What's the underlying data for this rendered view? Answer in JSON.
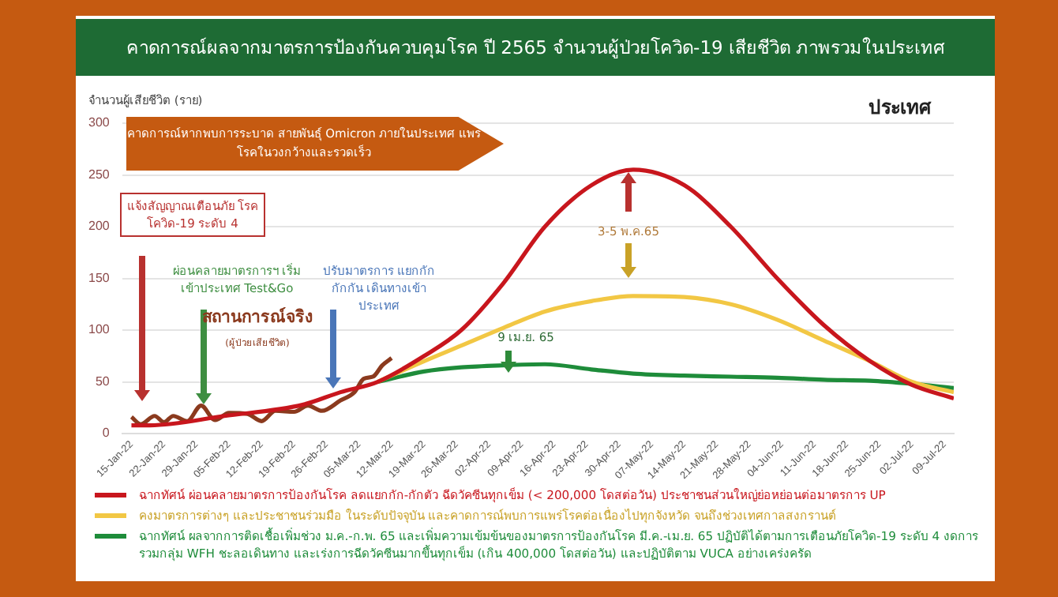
{
  "chart_data": {
    "type": "line",
    "title": "คาดการณ์ผลจากมาตรการป้องกันควบคุมโรค ปี 2565 จำนวนผู้ป่วยโควิด-19 เสียชีวิต ภาพรวมในประเทศ",
    "ylabel": "จำนวนผู้เสียชีวิต (ราย)",
    "x": [
      "--01-15",
      "--01-19",
      "--02-04",
      "--02-21",
      "--03-01",
      "--03-09",
      "--03-19",
      "--03-27",
      "--04-05",
      "--04-14",
      "--04-24",
      "--05-03",
      "--05-14",
      "--05-24",
      "--06-03",
      "--06-13",
      "--06-23",
      "--07-02",
      "--07-11"
    ],
    "series": [
      {
        "name": "ฉากทัศน์ ผ่อนคลายมาตรการป้องกันโรค ลดแยกกัก-กักตัว ฉีดวัคซีนทุกเข็ม (< 200,000 โดสต่อวัน) ประชาชนส่วนใหญ่ย่อหย่อนต่อมาตรการ UP",
        "color": "#c8161d",
        "values": [
          8,
          8,
          17,
          28,
          40,
          50,
          75,
          100,
          145,
          200,
          240,
          255,
          240,
          200,
          150,
          105,
          70,
          47,
          34
        ]
      },
      {
        "name": "คงมาตรการต่างๆ และประชาชนร่วมมือ ในระดับปัจจุบัน และคาดการณ์พบการแพร่โรคต่อเนื่องไปทุกจังหวัด จนถึงช่วงเทศกาลสงกรานต์",
        "color": "#f2c744",
        "values": [
          null,
          null,
          null,
          null,
          null,
          50,
          70,
          85,
          102,
          118,
          128,
          133,
          132,
          125,
          110,
          90,
          70,
          50,
          40
        ]
      },
      {
        "name": "ฉากทัศน์ ผลจากการติดเชื้อเพิ่มช่วง ม.ค.-ก.พ. 65 และเพิ่มความเข้มข้นของมาตรการป้องกันโรค มี.ค.-เม.ย. 65 ปฏิบัติได้ตามการเตือนภัยโควิด-19 ระดับ 4 งดการรวมกลุ่ม WFH ชะลอเดินทาง และเร่งการฉีดวัคซีนมากขึ้นทุกเข็ม (เกิน 400,000 โดสต่อวัน) และปฏิบัติตาม VUCA อย่างเคร่งครัด",
        "color": "#1e8c3a",
        "values": [
          null,
          null,
          null,
          null,
          null,
          50,
          60,
          64,
          66,
          67,
          62,
          58,
          56,
          55,
          54,
          52,
          51,
          48,
          44
        ]
      },
      {
        "name": "สถานการณ์จริง",
        "color": "#8b3a1e",
        "x": [
          "--01-15",
          "--01-17",
          "--01-20",
          "--01-22",
          "--01-24",
          "--01-27",
          "--01-30",
          "--02-02",
          "--02-05",
          "--02-09",
          "--02-12",
          "--02-15",
          "--02-19",
          "--02-22",
          "--02-25",
          "--03-01",
          "--03-04",
          "--03-06",
          "--03-08",
          "--03-10",
          "--03-12"
        ],
        "values": [
          16,
          9,
          17,
          11,
          17,
          12,
          27,
          13,
          20,
          19,
          12,
          22,
          21,
          27,
          22,
          32,
          40,
          53,
          55,
          66,
          73
        ]
      }
    ],
    "xlim": [
      "--01-13",
      "--07-11"
    ],
    "xticks": [
      {
        "value": "--01-15",
        "label": "15-Jan-22"
      },
      {
        "value": "--01-22",
        "label": "22-Jan-22"
      },
      {
        "value": "--01-29",
        "label": "29-Jan-22"
      },
      {
        "value": "--02-05",
        "label": "05-Feb-22"
      },
      {
        "value": "--02-12",
        "label": "12-Feb-22"
      },
      {
        "value": "--02-19",
        "label": "19-Feb-22"
      },
      {
        "value": "--02-26",
        "label": "26-Feb-22"
      },
      {
        "value": "--03-05",
        "label": "05-Mar-22"
      },
      {
        "value": "--03-12",
        "label": "12-Mar-22"
      },
      {
        "value": "--03-19",
        "label": "19-Mar-22"
      },
      {
        "value": "--03-26",
        "label": "26-Mar-22"
      },
      {
        "value": "--04-02",
        "label": "02-Apr-22"
      },
      {
        "value": "--04-09",
        "label": "09-Apr-22"
      },
      {
        "value": "--04-16",
        "label": "16-Apr-22"
      },
      {
        "value": "--04-23",
        "label": "23-Apr-22"
      },
      {
        "value": "--04-30",
        "label": "30-Apr-22"
      },
      {
        "value": "--05-07",
        "label": "07-May-22"
      },
      {
        "value": "--05-14",
        "label": "14-May-22"
      },
      {
        "value": "--05-21",
        "label": "21-May-22"
      },
      {
        "value": "--05-28",
        "label": "28-May-22"
      },
      {
        "value": "--06-04",
        "label": "04-Jun-22"
      },
      {
        "value": "--06-11",
        "label": "11-Jun-22"
      },
      {
        "value": "--06-18",
        "label": "18-Jun-22"
      },
      {
        "value": "--06-25",
        "label": "25-Jun-22"
      },
      {
        "value": "--07-02",
        "label": "02-Jul-22"
      },
      {
        "value": "--07-09",
        "label": "09-Jul-22"
      }
    ],
    "ylim": [
      0,
      300
    ],
    "yticks": [
      0,
      50,
      100,
      150,
      200,
      250,
      300
    ],
    "grid": "y",
    "legend": "bottom",
    "marker": "none",
    "line_style": "solid",
    "annotations": [
      "คาดการณ์หากพบการระบาด สายพันธุ์ Omicron ภายในประเทศ แพร่โรคในวงกว้างและรวดเร็ว",
      "ประเทศ",
      "แจ้งสัญญาณเตือนภัย โรคโควิด-19 ระดับ 4",
      "ผ่อนคลายมาตรการฯ เริ่มเข้าประเทศ Test&Go",
      "ปรับมาตรการ แยกกัก กักกัน เดินทางเข้าประเทศ",
      "9 เม.ย. 65",
      "3-5 พ.ค.65",
      "(ผู้ป่วยเสียชีวิต)"
    ]
  }
}
